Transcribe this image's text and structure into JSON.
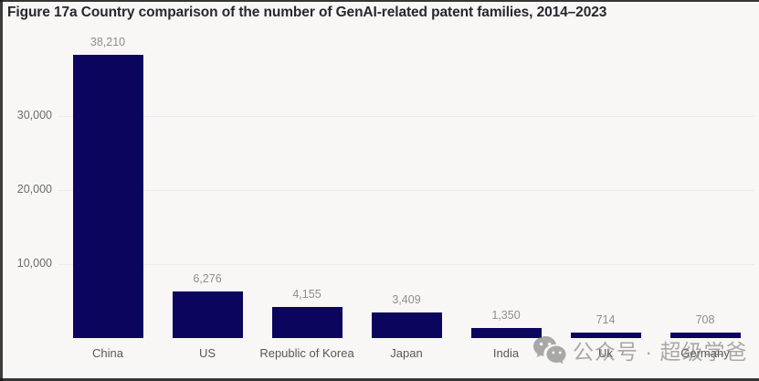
{
  "title": "Figure 17a Country comparison of the number of GenAI-related patent families, 2014–2023",
  "watermark": {
    "icon": "wechat-icon",
    "text": "公众号 · 超级学爸"
  },
  "colors": {
    "bar": "#0c055e",
    "background": "#f8f7f5",
    "gridline": "#ececea",
    "title_text": "#27272f",
    "value_label": "#8e8e90",
    "axis_label": "#58585a",
    "watermark": "#787878"
  },
  "chart_data": {
    "type": "bar",
    "title": "Figure 17a Country comparison of the number of GenAI-related patent families, 2014–2023",
    "categories": [
      "China",
      "US",
      "Republic of Korea",
      "Japan",
      "India",
      "Uk",
      "Germany"
    ],
    "values": [
      38210,
      6276,
      4155,
      3409,
      1350,
      714,
      708
    ],
    "value_labels": [
      "38,210",
      "6,276",
      "4,155",
      "3,409",
      "1,350",
      "714",
      "708"
    ],
    "xlabel": "",
    "ylabel": "",
    "y_ticks": [
      10000,
      20000,
      30000
    ],
    "y_tick_labels": [
      "10,000",
      "20,000",
      "30,000"
    ],
    "ylim": [
      0,
      42000
    ],
    "grid": "horizontal-only",
    "legend": "none",
    "bar_color": "#0c055e"
  }
}
